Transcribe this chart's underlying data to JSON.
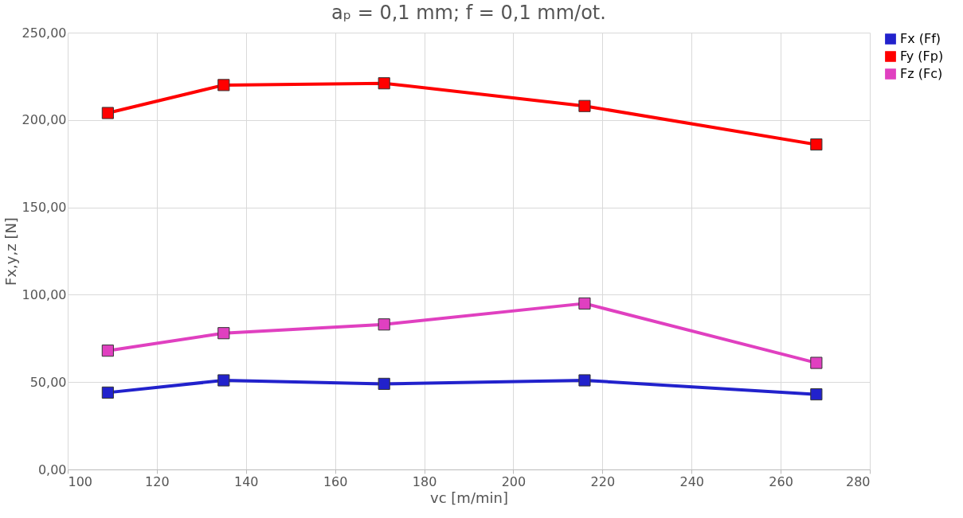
{
  "chart_data": {
    "type": "line",
    "title": "aₚ = 0,1 mm; f = 0,1 mm/ot.",
    "xlabel": "vc [m/min]",
    "ylabel": "Fx,y,z [N]",
    "x": [
      109,
      135,
      171,
      216,
      268
    ],
    "series": [
      {
        "name": "Fx (Ff)",
        "color": "#2222cc",
        "values": [
          44,
          51,
          49,
          51,
          43
        ]
      },
      {
        "name": "Fy (Fp)",
        "color": "#ff0000",
        "values": [
          204,
          220,
          221,
          208,
          186
        ]
      },
      {
        "name": "Fz (Fc)",
        "color": "#e040c0",
        "values": [
          68,
          78,
          83,
          95,
          61
        ]
      }
    ],
    "xlim": [
      100,
      280
    ],
    "xticks": [
      100,
      120,
      140,
      160,
      180,
      200,
      220,
      240,
      260,
      280
    ],
    "ylim": [
      0,
      250
    ],
    "yticks": [
      {
        "value": 0,
        "label": "0,00"
      },
      {
        "value": 50,
        "label": "50,00"
      },
      {
        "value": 100,
        "label": "100,00"
      },
      {
        "value": 150,
        "label": "150,00"
      },
      {
        "value": 200,
        "label": "200,00"
      },
      {
        "value": 250,
        "label": "250,00"
      }
    ],
    "grid": true,
    "legend": "right",
    "marker": "square",
    "line_style": "solid"
  }
}
